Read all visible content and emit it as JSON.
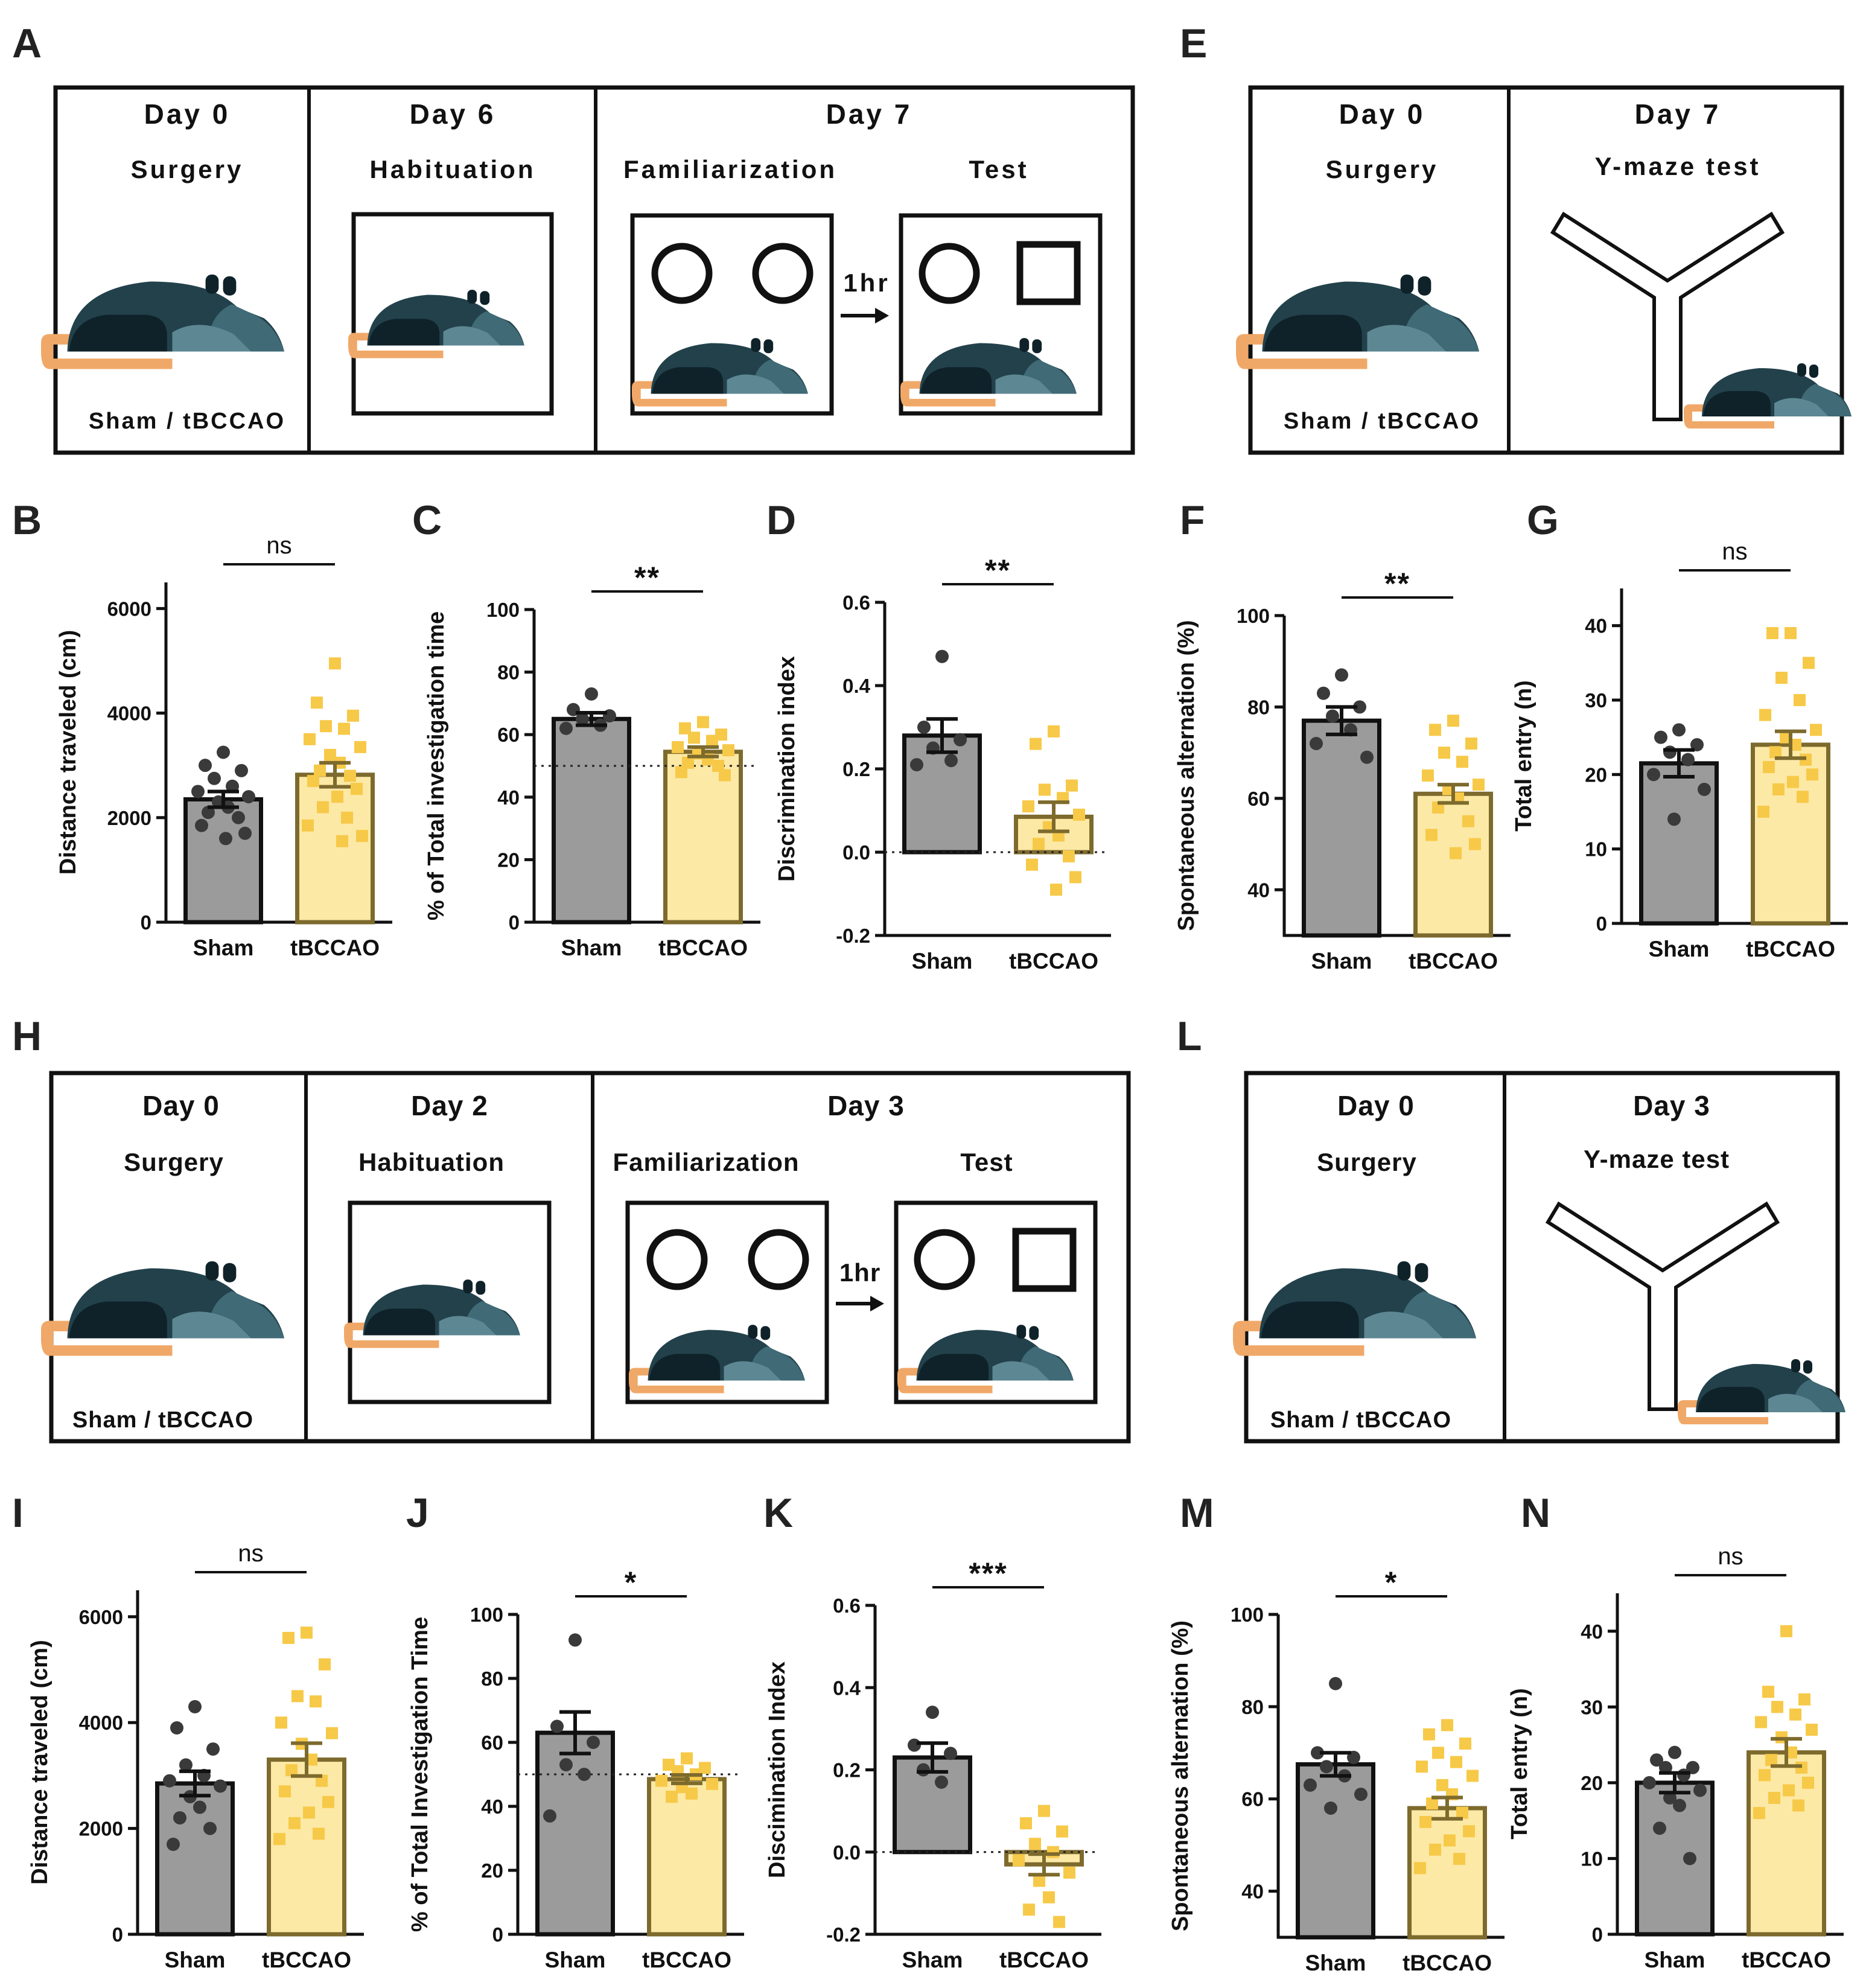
{
  "figure": {
    "colors": {
      "sham_fill": "#9b9b9b",
      "sham_point": "#3a3a3a",
      "tbccao_fill": "#fde9a6",
      "tbccao_point": "#f7c948",
      "tbccao_edge": "#7d6a2d",
      "mouse_dark": "#22414b",
      "mouse_mid": "#3f6a76",
      "mouse_light": "#5d8793",
      "tail": "#f0a868"
    },
    "icons": [
      "mouse-icon",
      "open-field-box-icon",
      "y-maze-icon",
      "circle-object-icon",
      "square-object-icon",
      "arrow-icon"
    ]
  },
  "schedules": {
    "A": {
      "label": "A",
      "d0": {
        "day": "Day 0",
        "sub": "Surgery",
        "group": "Sham / tBCCAO"
      },
      "d1": {
        "day": "Day 6",
        "sub": "Habituation"
      },
      "d2": {
        "day": "Day 7",
        "fam": "Familiarization",
        "test": "Test",
        "delay": "1hr"
      }
    },
    "E": {
      "label": "E",
      "d0": {
        "day": "Day 0",
        "sub": "Surgery",
        "group": "Sham / tBCCAO"
      },
      "d1": {
        "day": "Day 7",
        "sub": "Y-maze test"
      }
    },
    "H": {
      "label": "H",
      "d0": {
        "day": "Day 0",
        "sub": "Surgery",
        "group": "Sham / tBCCAO"
      },
      "d1": {
        "day": "Day 2",
        "sub": "Habituation"
      },
      "d2": {
        "day": "Day 3",
        "fam": "Familiarization",
        "test": "Test",
        "delay": "1hr"
      }
    },
    "L": {
      "label": "L",
      "d0": {
        "day": "Day 0",
        "sub": "Surgery",
        "group": "Sham / tBCCAO"
      },
      "d1": {
        "day": "Day 3",
        "sub": "Y-maze test"
      }
    }
  },
  "chart_data": [
    {
      "panel": "B",
      "type": "bar",
      "ylabel": "Distance traveled  (cm)",
      "categories": [
        "Sham",
        "tBCCAO"
      ],
      "ylim": [
        0,
        6500
      ],
      "yticks": [
        0,
        2000,
        4000,
        6000
      ],
      "significance": "ns",
      "reference_line": null,
      "series": [
        {
          "name": "Sham",
          "mean": 2350,
          "sem": 150,
          "points": [
            3250,
            3000,
            2900,
            2750,
            2600,
            2500,
            2400,
            2300,
            2200,
            2100,
            2000,
            1850,
            1700,
            1600
          ]
        },
        {
          "name": "tBCCAO",
          "mean": 2820,
          "sem": 230,
          "points": [
            4950,
            4200,
            3950,
            3750,
            3700,
            3500,
            3350,
            3200,
            3050,
            2900,
            2800,
            2700,
            2550,
            2400,
            2200,
            2000,
            1850,
            1650,
            1550
          ]
        }
      ]
    },
    {
      "panel": "C",
      "type": "bar",
      "ylabel": "% of Total investigation time",
      "categories": [
        "Sham",
        "tBCCAO"
      ],
      "ylim": [
        0,
        100
      ],
      "yticks": [
        0,
        20,
        40,
        60,
        80,
        100
      ],
      "significance": "**",
      "reference_line": 50,
      "series": [
        {
          "name": "Sham",
          "mean": 65,
          "sem": 2,
          "points": [
            73,
            68,
            66,
            65,
            63,
            62
          ]
        },
        {
          "name": "tBCCAO",
          "mean": 54.5,
          "sem": 1.5,
          "points": [
            64,
            62,
            60,
            59,
            58,
            56,
            55,
            54,
            52,
            51,
            50,
            48,
            47
          ]
        }
      ]
    },
    {
      "panel": "D",
      "type": "bar",
      "ylabel": "Discrimination index",
      "categories": [
        "Sham",
        "tBCCAO"
      ],
      "ylim": [
        -0.2,
        0.6
      ],
      "yticks": [
        -0.2,
        0.0,
        0.2,
        0.4,
        0.6
      ],
      "significance": "**",
      "reference_line": 0,
      "series": [
        {
          "name": "Sham",
          "mean": 0.28,
          "sem": 0.04,
          "points": [
            0.47,
            0.3,
            0.27,
            0.25,
            0.22,
            0.21
          ]
        },
        {
          "name": "tBCCAO",
          "mean": 0.085,
          "sem": 0.035,
          "points": [
            0.29,
            0.26,
            0.16,
            0.15,
            0.13,
            0.11,
            0.09,
            0.06,
            0.04,
            0.02,
            -0.01,
            -0.03,
            -0.06,
            -0.09
          ]
        }
      ]
    },
    {
      "panel": "F",
      "type": "bar",
      "ylabel": "Spontaneous alternation  (%)",
      "categories": [
        "Sham",
        "tBCCAO"
      ],
      "ylim": [
        30,
        100
      ],
      "yticks": [
        40,
        60,
        80,
        100
      ],
      "significance": "**",
      "reference_line": null,
      "series": [
        {
          "name": "Sham",
          "mean": 77,
          "sem": 3,
          "points": [
            87,
            83,
            80,
            78,
            75,
            72,
            69
          ]
        },
        {
          "name": "tBCCAO",
          "mean": 61,
          "sem": 2,
          "points": [
            77,
            75,
            72,
            70,
            68,
            65,
            63,
            62,
            60,
            58,
            55,
            52,
            50,
            48
          ]
        }
      ]
    },
    {
      "panel": "G",
      "type": "bar",
      "ylabel": "Total entry (n)",
      "categories": [
        "Sham",
        "tBCCAO"
      ],
      "ylim": [
        0,
        45
      ],
      "yticks": [
        0,
        10,
        20,
        30,
        40
      ],
      "significance": "ns",
      "reference_line": null,
      "series": [
        {
          "name": "Sham",
          "mean": 21.5,
          "sem": 1.8,
          "points": [
            26,
            25,
            24,
            23,
            22,
            20,
            18,
            14
          ]
        },
        {
          "name": "tBCCAO",
          "mean": 24,
          "sem": 1.8,
          "points": [
            39,
            39,
            35,
            33,
            30,
            28,
            26,
            25,
            24,
            23,
            22,
            21,
            20,
            19,
            18,
            17,
            15
          ]
        }
      ]
    },
    {
      "panel": "I",
      "type": "bar",
      "ylabel": "Distance traveled  (cm)",
      "categories": [
        "Sham",
        "tBCCAO"
      ],
      "ylim": [
        0,
        6500
      ],
      "yticks": [
        0,
        2000,
        4000,
        6000
      ],
      "significance": "ns",
      "reference_line": null,
      "series": [
        {
          "name": "Sham",
          "mean": 2850,
          "sem": 230,
          "points": [
            4300,
            3900,
            3500,
            3200,
            3000,
            2900,
            2800,
            2600,
            2400,
            2200,
            2000,
            1700
          ]
        },
        {
          "name": "tBCCAO",
          "mean": 3300,
          "sem": 310,
          "points": [
            5700,
            5600,
            5100,
            4500,
            4400,
            4000,
            3800,
            3600,
            3300,
            3100,
            2900,
            2700,
            2500,
            2300,
            2100,
            1900,
            1800
          ]
        }
      ]
    },
    {
      "panel": "J",
      "type": "bar",
      "ylabel": "% of Total Investigation Time",
      "categories": [
        "Sham",
        "tBCCAO"
      ],
      "ylim": [
        0,
        100
      ],
      "yticks": [
        0,
        20,
        40,
        60,
        80,
        100
      ],
      "significance": "*",
      "reference_line": 50,
      "series": [
        {
          "name": "Sham",
          "mean": 63,
          "sem": 6.5,
          "points": [
            92,
            65,
            60,
            53,
            50,
            37
          ]
        },
        {
          "name": "tBCCAO",
          "mean": 48.5,
          "sem": 1.3,
          "points": [
            55,
            53,
            52,
            51,
            50,
            48,
            47,
            46,
            44,
            43
          ]
        }
      ]
    },
    {
      "panel": "K",
      "type": "bar",
      "ylabel": "Discimination  Index",
      "categories": [
        "Sham",
        "tBCCAO"
      ],
      "ylim": [
        -0.2,
        0.6
      ],
      "yticks": [
        -0.2,
        0.0,
        0.2,
        0.4,
        0.6
      ],
      "significance": "***",
      "reference_line": 0,
      "series": [
        {
          "name": "Sham",
          "mean": 0.23,
          "sem": 0.035,
          "points": [
            0.34,
            0.26,
            0.24,
            0.2,
            0.17
          ]
        },
        {
          "name": "tBCCAO",
          "mean": -0.03,
          "sem": 0.025,
          "points": [
            0.1,
            0.07,
            0.05,
            0.02,
            0.0,
            -0.02,
            -0.05,
            -0.07,
            -0.11,
            -0.14,
            -0.17
          ]
        }
      ]
    },
    {
      "panel": "M",
      "type": "bar",
      "ylabel": "Spontaneous alternation  (%)",
      "categories": [
        "Sham",
        "tBCCAO"
      ],
      "ylim": [
        30,
        100
      ],
      "yticks": [
        40,
        60,
        80,
        100
      ],
      "significance": "*",
      "reference_line": null,
      "series": [
        {
          "name": "Sham",
          "mean": 67.5,
          "sem": 2.5,
          "points": [
            85,
            70,
            69,
            67,
            65,
            63,
            61,
            58
          ]
        },
        {
          "name": "tBCCAO",
          "mean": 58,
          "sem": 2.3,
          "points": [
            76,
            74,
            72,
            70,
            68,
            67,
            65,
            63,
            61,
            59,
            57,
            55,
            53,
            51,
            49,
            47,
            45
          ]
        }
      ]
    },
    {
      "panel": "N",
      "type": "bar",
      "ylabel": "Total entry (n)",
      "categories": [
        "Sham",
        "tBCCAO"
      ],
      "ylim": [
        0,
        45
      ],
      "yticks": [
        0,
        10,
        20,
        30,
        40
      ],
      "significance": "ns",
      "reference_line": null,
      "series": [
        {
          "name": "Sham",
          "mean": 20,
          "sem": 1.3,
          "points": [
            24,
            23,
            22,
            22,
            21,
            20,
            19,
            18,
            17,
            14,
            10
          ]
        },
        {
          "name": "tBCCAO",
          "mean": 24,
          "sem": 1.8,
          "points": [
            40,
            32,
            31,
            30,
            29,
            28,
            27,
            26,
            24,
            23,
            22,
            21,
            20,
            19,
            18,
            17,
            16
          ]
        }
      ]
    }
  ]
}
